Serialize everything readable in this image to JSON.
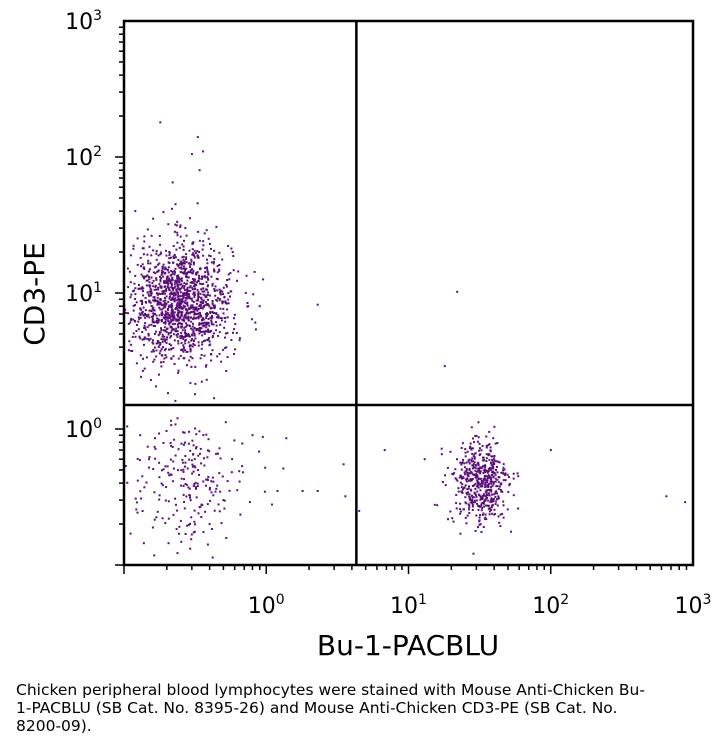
{
  "chart_data": {
    "type": "scatter",
    "title": "",
    "xlabel": "Bu-1-PACBLU",
    "ylabel": "CD3-PE",
    "xscale": "log",
    "yscale": "log",
    "xlim": [
      0.1,
      1000
    ],
    "ylim": [
      0.1,
      1000
    ],
    "x_ticks": [
      {
        "base": "10",
        "exp": "0",
        "value": 1
      },
      {
        "base": "10",
        "exp": "1",
        "value": 10
      },
      {
        "base": "10",
        "exp": "2",
        "value": 100
      },
      {
        "base": "10",
        "exp": "3",
        "value": 1000
      }
    ],
    "y_ticks": [
      {
        "base": "10",
        "exp": "0",
        "value": 1
      },
      {
        "base": "10",
        "exp": "1",
        "value": 10
      },
      {
        "base": "10",
        "exp": "2",
        "value": 100
      },
      {
        "base": "10",
        "exp": "3",
        "value": 1000
      }
    ],
    "quadrant_gates": {
      "x": 4.3,
      "y": 1.5
    },
    "point_color": "#5b0f7a",
    "populations": [
      {
        "count": 1400,
        "x_center": 0.25,
        "y_center": 8.5,
        "x_spread_log": 0.18,
        "y_spread_log": 0.22
      },
      {
        "count": 240,
        "x_center": 0.28,
        "y_center": 0.42,
        "x_spread_log": 0.22,
        "y_spread_log": 0.22
      },
      {
        "count": 520,
        "x_center": 32,
        "y_center": 0.4,
        "x_spread_log": 0.1,
        "y_spread_log": 0.16
      }
    ],
    "points": [
      [
        0.18,
        180
      ],
      [
        0.33,
        140
      ],
      [
        0.36,
        110
      ],
      [
        0.3,
        105
      ],
      [
        0.22,
        65
      ],
      [
        0.34,
        80
      ],
      [
        0.12,
        40
      ],
      [
        0.23,
        45
      ],
      [
        0.27,
        30
      ],
      [
        0.9,
        8.0
      ],
      [
        2.3,
        8.2
      ],
      [
        22,
        10.2
      ],
      [
        18,
        2.9
      ],
      [
        0.65,
        4.5
      ],
      [
        0.8,
        0.9
      ],
      [
        1.2,
        0.35
      ],
      [
        1.8,
        0.35
      ],
      [
        2.3,
        0.35
      ],
      [
        3.5,
        0.55
      ],
      [
        3.6,
        0.32
      ],
      [
        4.5,
        0.25
      ],
      [
        6.8,
        0.7
      ],
      [
        13,
        0.6
      ],
      [
        100,
        0.7
      ],
      [
        650,
        0.32
      ],
      [
        880,
        0.29
      ],
      [
        0.13,
        0.9
      ],
      [
        0.4,
        0.2
      ],
      [
        0.5,
        0.3
      ],
      [
        0.15,
        0.6
      ]
    ]
  },
  "caption": "Chicken peripheral blood lymphocytes were stained with Mouse Anti-Chicken Bu-1-PACBLU (SB Cat. No. 8395-26) and Mouse Anti-Chicken CD3-PE (SB Cat. No. 8200-09)."
}
